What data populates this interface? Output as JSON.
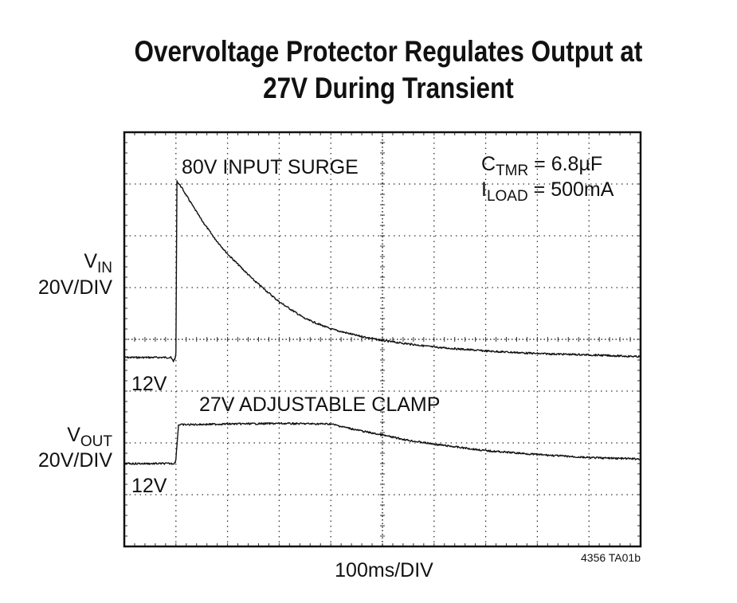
{
  "chart_data": {
    "type": "line",
    "title": [
      "Overvoltage Protector Regulates Output at",
      "27V During Transient"
    ],
    "xlabel": "100ms/DIV",
    "x_divisions": 10,
    "y_divisions": 8,
    "grid": true,
    "grid_style": "dotted",
    "footnote": "4356 TA01b",
    "conditions": [
      {
        "symbol": "C",
        "subscript": "TMR",
        "value": " = 6.8µF"
      },
      {
        "symbol": "I",
        "subscript": "LOAD",
        "value": " = 500mA"
      }
    ],
    "series": [
      {
        "name": "VIN",
        "axis_label": "V",
        "axis_label_sub": "IN",
        "scale": "20V/DIV",
        "baseline_label": "12V",
        "baseline_div": 3.65,
        "volts_per_div": 20,
        "annotation": "80V INPUT SURGE",
        "x_div": [
          0,
          0.9,
          0.95,
          0.99,
          1.0,
          1.02,
          1.1,
          1.25,
          1.5,
          1.75,
          2.0,
          2.5,
          3.0,
          3.5,
          4.0,
          4.5,
          5.0,
          6.0,
          7.0,
          8.0,
          9.0,
          10.0
        ],
        "volts": [
          12,
          12,
          10.5,
          12,
          14,
          80,
          78,
          73,
          65,
          58,
          52,
          42,
          33.5,
          27,
          23,
          20.5,
          18.5,
          16,
          14.5,
          13.5,
          13,
          12.3
        ]
      },
      {
        "name": "VOUT",
        "axis_label": "V",
        "axis_label_sub": "OUT",
        "scale": "20V/DIV",
        "baseline_label": "12V",
        "baseline_div": 1.6,
        "volts_per_div": 20,
        "annotation": "27V ADJUSTABLE CLAMP",
        "x_div": [
          0,
          0.95,
          0.99,
          1.0,
          1.05,
          2.0,
          3.0,
          4.0,
          4.5,
          5.0,
          5.5,
          6.0,
          7.0,
          8.0,
          9.0,
          10.0
        ],
        "volts": [
          12,
          12,
          12.5,
          14,
          27,
          27.3,
          27.5,
          27.3,
          25,
          23,
          21,
          19.5,
          17,
          15.5,
          14.3,
          13.8
        ]
      }
    ]
  },
  "labels": {
    "xlabel": "100ms/DIV",
    "footnote": "4356 TA01b",
    "vin_scale": "20V/DIV",
    "vout_scale": "20V/DIV",
    "vin_baseline": "12V",
    "vout_baseline": "12V",
    "vin_annotation": "80V INPUT SURGE",
    "vout_annotation": "27V ADJUSTABLE CLAMP"
  }
}
